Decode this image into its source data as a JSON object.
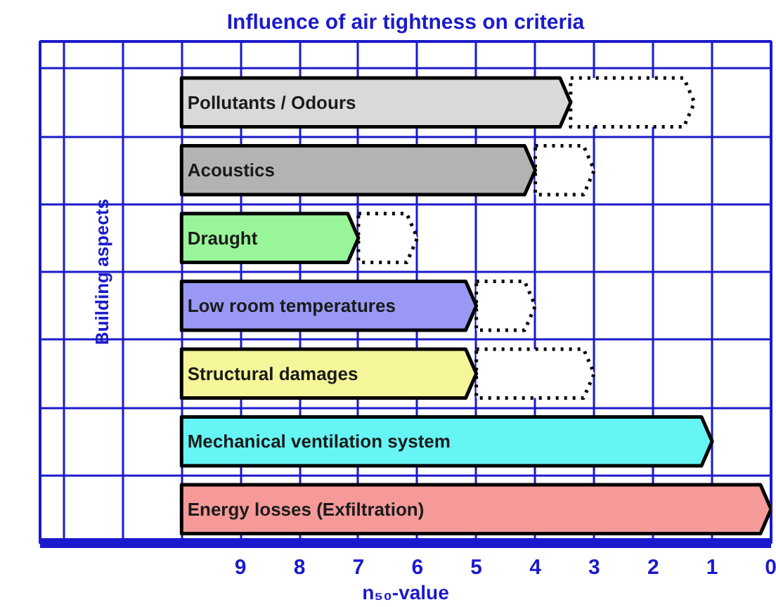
{
  "chart_data": {
    "type": "bar",
    "orientation": "horizontal",
    "title": "Influence of air tightness on criteria",
    "xlabel": "n₅₀-value",
    "categories": [
      "Pollutants / Odours",
      "Acoustics",
      "Draught",
      "Low room temperatures",
      "Structural damages",
      "Mechanical ventilation system",
      "Energy losses (Exfiltration)"
    ],
    "series": [
      {
        "color": "#ffffff",
        "line_style": "dotted",
        "base": [
          1.3,
          3.0,
          6.0,
          4.0,
          3.0,
          null,
          null
        ],
        "values": [
          2.1,
          1.0,
          1.0,
          1.0,
          2.0,
          null,
          null
        ]
      },
      {
        "colors": [
          "#d9d9d9",
          "#b3b3b3",
          "#99f599",
          "#9999f5",
          "#f5f599",
          "#66f5f5",
          "#f59999"
        ],
        "line_style": "solid",
        "base": [
          3.4,
          4.0,
          7.0,
          5.0,
          5.0,
          1.0,
          0
        ],
        "values": [
          6.6,
          6.0,
          3.0,
          5.0,
          5.0,
          9.0,
          10.0
        ]
      }
    ],
    "xlim": [
      12.4,
      0
    ],
    "xticks": [
      9,
      8,
      7,
      6,
      5,
      4,
      3,
      2,
      1,
      0
    ],
    "grid": true,
    "tick_labels": "x",
    "annotations": [
      "Building aspects"
    ]
  }
}
